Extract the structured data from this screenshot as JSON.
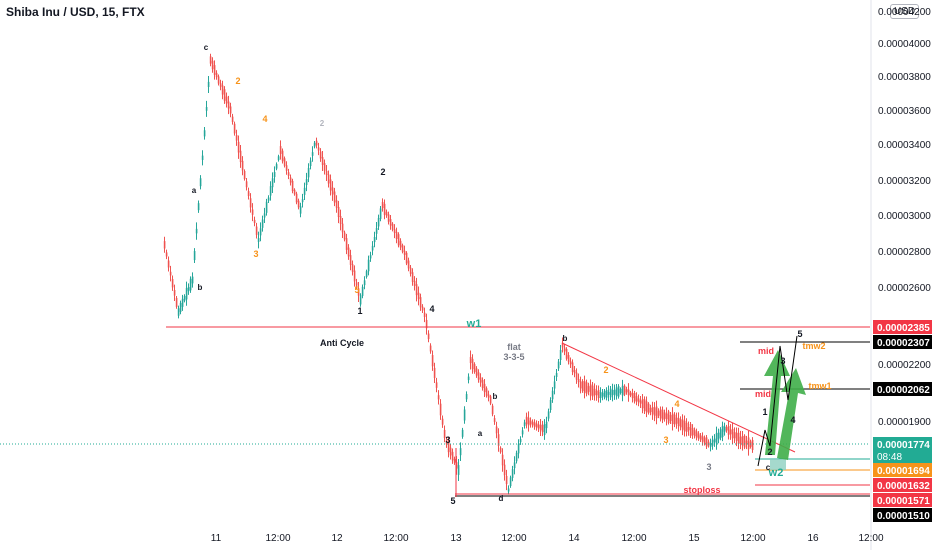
{
  "header": {
    "title": "Shiba Inu / USD, 15, FTX",
    "currency_button": "USD"
  },
  "chart_data": {
    "type": "candlestick",
    "symbol": "Shiba Inu / USD",
    "interval": "15",
    "exchange": "FTX",
    "x_axis": {
      "tick_labels": [
        "11",
        "12:00",
        "12",
        "12:00",
        "13",
        "12:00",
        "14",
        "12:00",
        "15",
        "12:00",
        "16",
        "12:00"
      ]
    },
    "y_axis": {
      "tick_labels": [
        "0.00004200",
        "0.00004000",
        "0.00003800",
        "0.00003600",
        "0.00003400",
        "0.00003200",
        "0.00003000",
        "0.00002800",
        "0.00002600",
        "0.00002200",
        "0.00001900"
      ],
      "tick_values": [
        4.2e-05,
        4e-05,
        3.8e-05,
        3.6e-05,
        3.4e-05,
        3.2e-05,
        3e-05,
        2.8e-05,
        2.6e-05,
        2.2e-05,
        1.9e-05
      ]
    },
    "price_levels": [
      {
        "label": "0.00002385",
        "value": 2.385e-05,
        "color": "#f23645"
      },
      {
        "label": "0.00002307",
        "value": 2.307e-05,
        "color": "#000000"
      },
      {
        "label": "0.00002062",
        "value": 2.062e-05,
        "color": "#000000"
      },
      {
        "label": "0.00001774",
        "value": 1.774e-05,
        "color": "#22ab94",
        "sublabel": "08:48"
      },
      {
        "label": "0.00001694",
        "value": 1.694e-05,
        "color": "#f7931a"
      },
      {
        "label": "0.00001632",
        "value": 1.632e-05,
        "color": "#f23645"
      },
      {
        "label": "0.00001571",
        "value": 1.571e-05,
        "color": "#f23645"
      },
      {
        "label": "0.00001510",
        "value": 1.51e-05,
        "color": "#000000"
      }
    ],
    "annotations": [
      "Anti Cycle",
      "flat",
      "3-3-5",
      "stoploss",
      "w1",
      "w2",
      "mid",
      "mid",
      "tmw2",
      "tmw1",
      "1",
      "2",
      "3",
      "4",
      "5",
      "a",
      "b",
      "c",
      "d"
    ],
    "colors": {
      "up": "#26a69a",
      "down": "#ef5350"
    }
  }
}
